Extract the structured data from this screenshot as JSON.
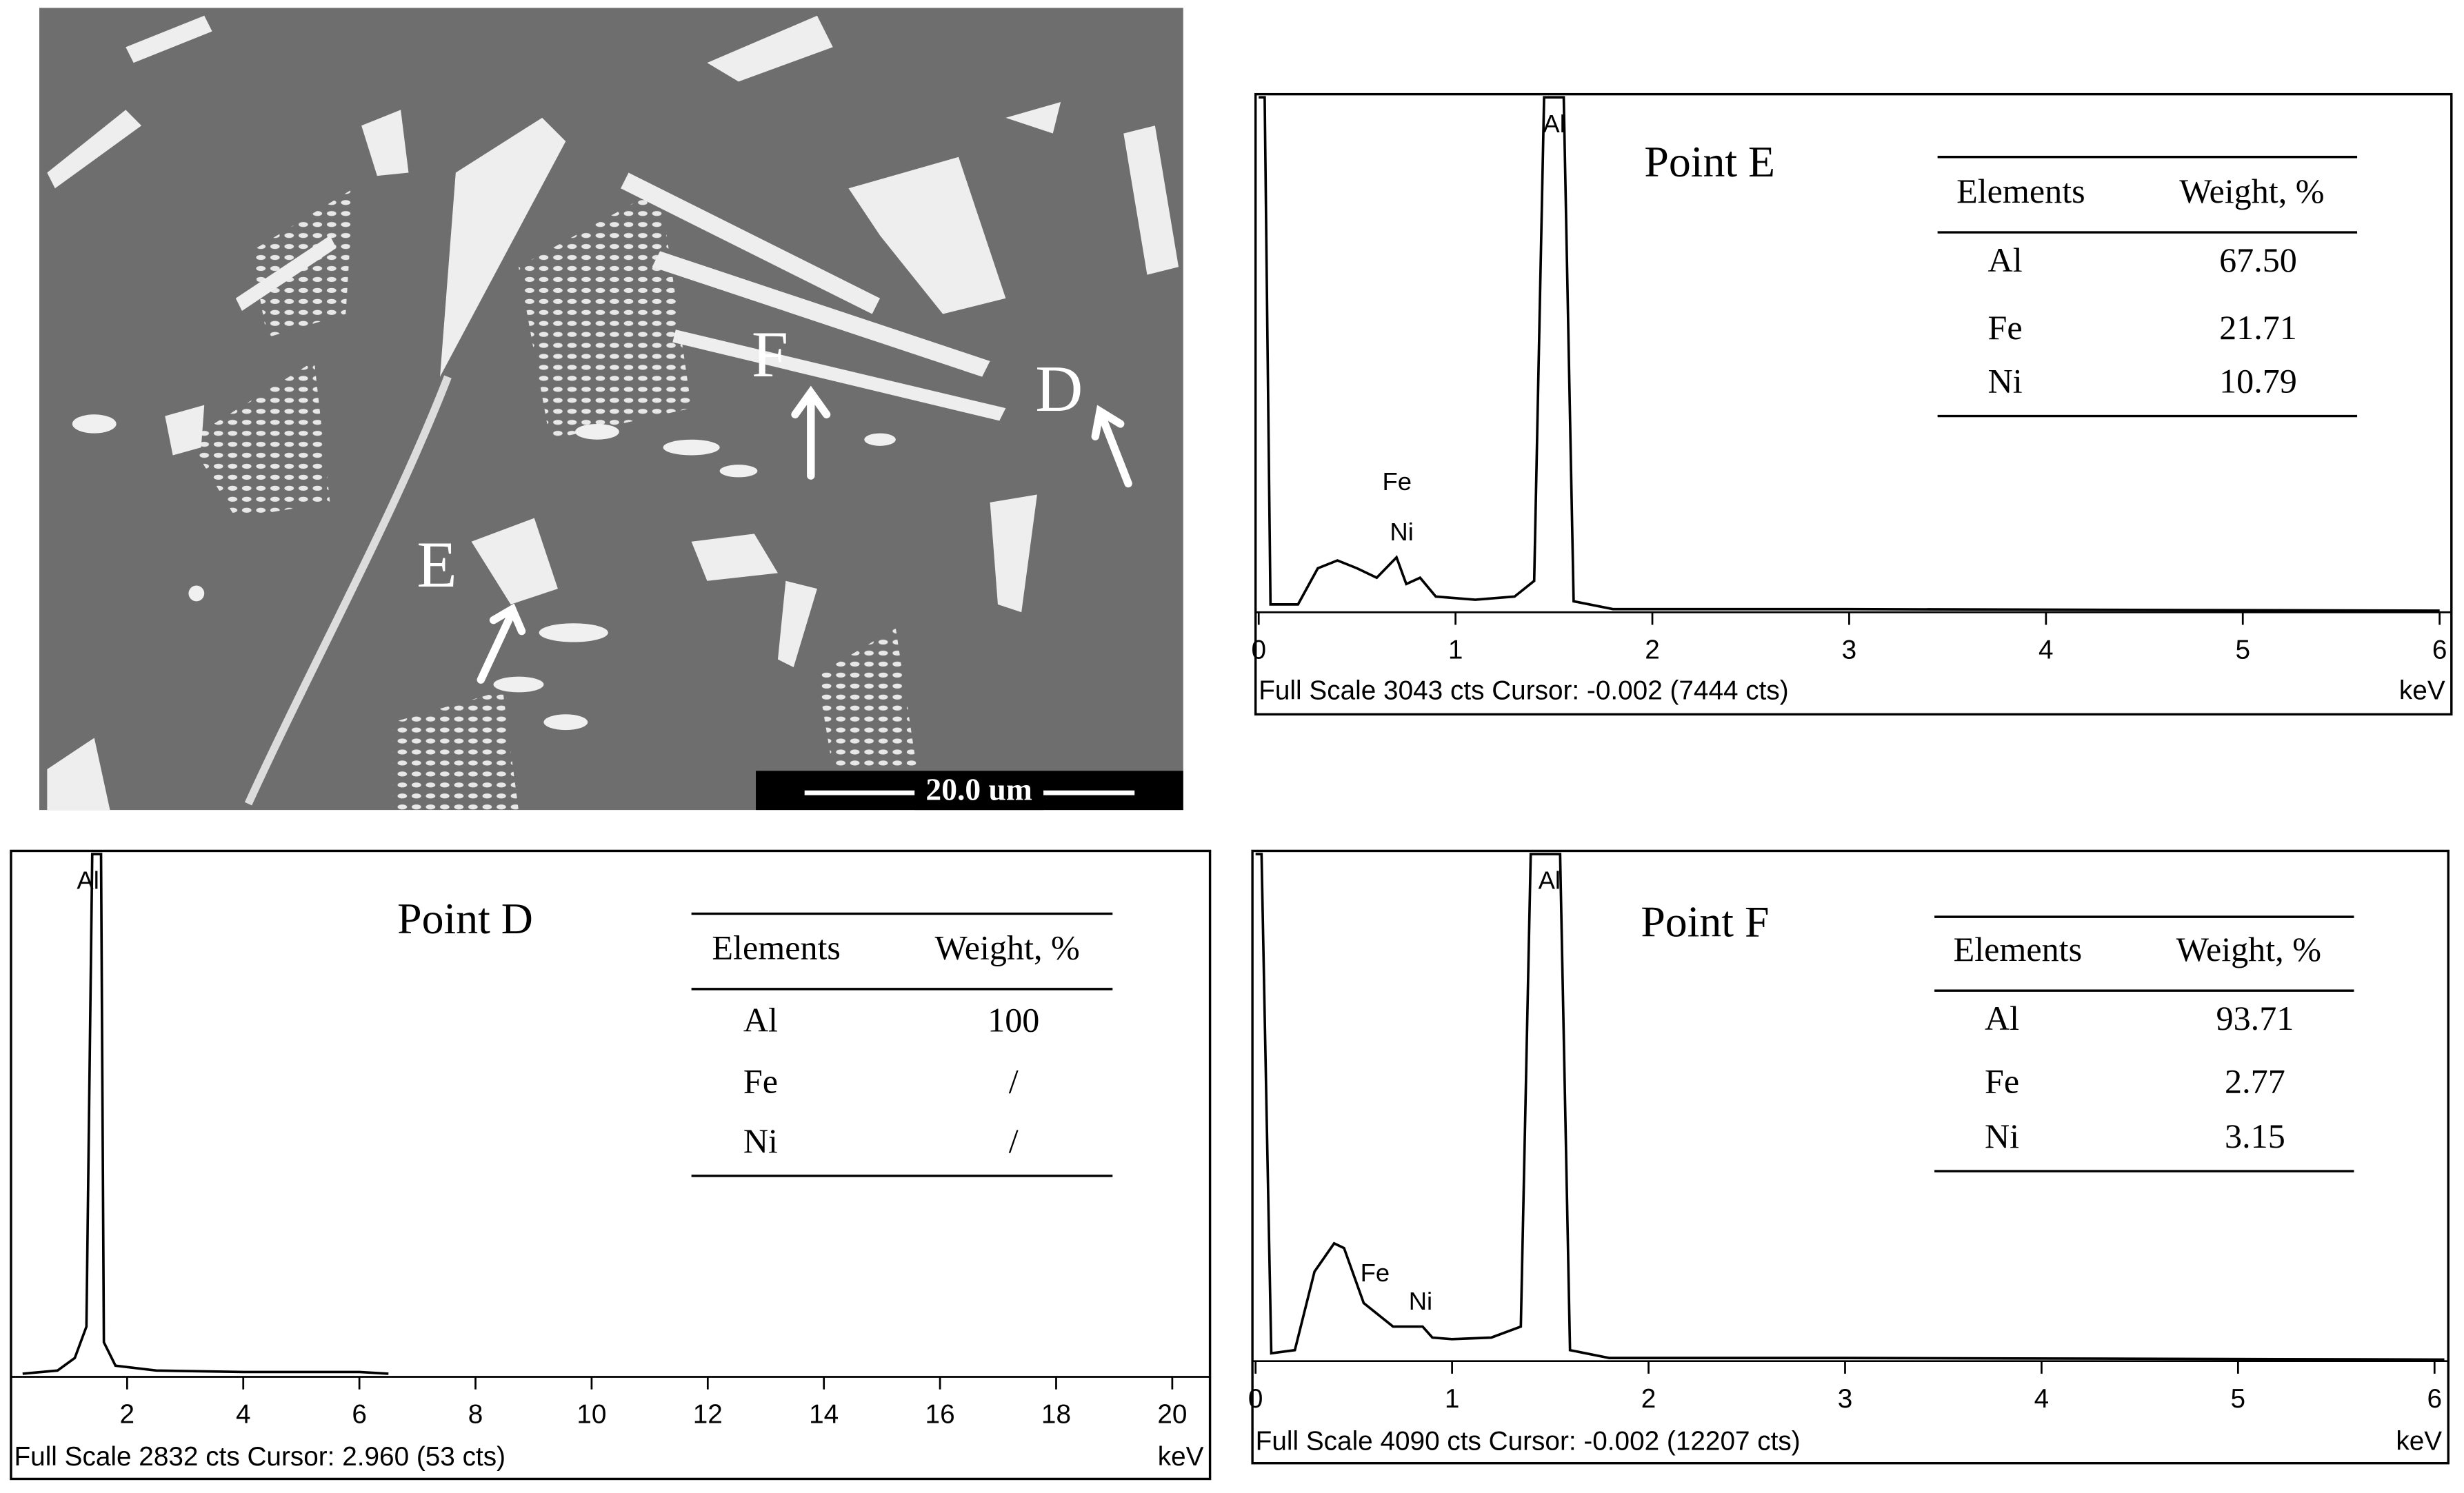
{
  "micrograph": {
    "labels": [
      "E",
      "F",
      "D"
    ],
    "scale_bar": "20.0 um"
  },
  "chart_data": [
    {
      "type": "line",
      "title": "Point E",
      "xlabel": "keV",
      "footer": "Full Scale 3043 cts Cursor: -0.002  (7444 cts)",
      "annotations": [
        "Al",
        "Fe",
        "Ni"
      ],
      "color": "#000000",
      "xlim": [
        0,
        6.06
      ],
      "ylim": [
        0,
        3043
      ],
      "xticks": [
        0,
        1,
        2,
        3,
        4,
        5,
        6
      ],
      "x": [
        0,
        0.03,
        0.06,
        0.2,
        0.3,
        0.4,
        0.5,
        0.6,
        0.7,
        0.75,
        0.82,
        0.9,
        1.1,
        1.3,
        1.4,
        1.45,
        1.55,
        1.6,
        1.8,
        3,
        6
      ],
      "values": [
        3043,
        3043,
        46,
        46,
        260,
        306,
        260,
        204,
        325,
        167,
        204,
        93,
        74,
        93,
        186,
        3043,
        3043,
        65,
        19,
        19,
        9
      ],
      "table": {
        "header": [
          "Elements",
          "Weight, %"
        ],
        "rows": [
          [
            "Al",
            "67.50"
          ],
          [
            "Fe",
            "21.71"
          ],
          [
            "Ni",
            "10.79"
          ]
        ]
      }
    },
    {
      "type": "line",
      "title": "Point D",
      "xlabel": "keV",
      "footer": "Full Scale 2832 cts Cursor: 2.960  (53 cts)",
      "annotations": [
        "Al"
      ],
      "color": "#000000",
      "xlim": [
        0,
        20.65
      ],
      "ylim": [
        0,
        2832
      ],
      "xticks": [
        2,
        4,
        6,
        8,
        10,
        12,
        14,
        16,
        18,
        20
      ],
      "x": [
        0.2,
        0.8,
        1.1,
        1.3,
        1.4,
        1.55,
        1.6,
        1.8,
        2.5,
        4,
        6,
        6.5
      ],
      "values": [
        17,
        34,
        102,
        272,
        2832,
        2832,
        187,
        60,
        34,
        26,
        26,
        17
      ],
      "table": {
        "header": [
          "Elements",
          "Weight, %"
        ],
        "rows": [
          [
            "Al",
            "100"
          ],
          [
            "Fe",
            "/"
          ],
          [
            "Ni",
            "/"
          ]
        ]
      }
    },
    {
      "type": "line",
      "title": "Point F",
      "xlabel": "keV",
      "footer": "Full Scale 4090 cts Cursor: -0.002  (12207 cts)",
      "annotations": [
        "Al",
        "Fe",
        "Ni"
      ],
      "color": "#000000",
      "xlim": [
        0,
        6.07
      ],
      "ylim": [
        0,
        4090
      ],
      "xticks": [
        0,
        1,
        2,
        3,
        4,
        5,
        6
      ],
      "x": [
        0,
        0.03,
        0.08,
        0.2,
        0.3,
        0.4,
        0.45,
        0.55,
        0.7,
        0.85,
        0.9,
        1.0,
        1.2,
        1.35,
        1.4,
        1.55,
        1.6,
        1.8,
        3,
        6.05
      ],
      "values": [
        4090,
        4090,
        63,
        89,
        722,
        950,
        912,
        468,
        278,
        278,
        190,
        177,
        190,
        278,
        4090,
        4090,
        89,
        25,
        25,
        13
      ],
      "table": {
        "header": [
          "Elements",
          "Weight, %"
        ],
        "rows": [
          [
            "Al",
            "93.71"
          ],
          [
            "Fe",
            "2.77"
          ],
          [
            "Ni",
            "3.15"
          ]
        ]
      }
    }
  ]
}
